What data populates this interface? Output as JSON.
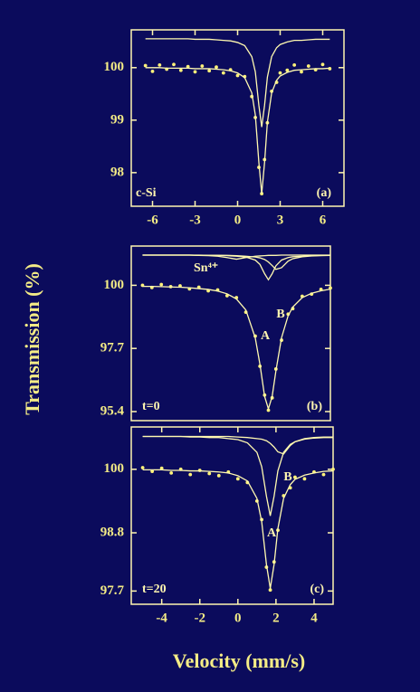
{
  "xlabel": "Velocity (mm/s)",
  "ylabel": "Transmission (%)",
  "chart_data": [
    {
      "type": "line",
      "annotations": [
        "c-Si",
        "(a)"
      ],
      "x": [
        -6.5,
        -6,
        -5.5,
        -5,
        -4.5,
        -4,
        -3.5,
        -3,
        -2.5,
        -2,
        -1.5,
        -1,
        -0.5,
        0,
        0.5,
        1,
        1.25,
        1.5,
        1.7,
        1.9,
        2.1,
        2.4,
        2.75,
        3,
        3.5,
        4,
        4.5,
        5,
        5.5,
        6,
        6.5
      ],
      "xlim": [
        -7.5,
        7.5
      ],
      "xticks": [
        -6,
        -3,
        0,
        3,
        6
      ],
      "ylim": [
        97.36,
        100.72
      ],
      "yticks": [
        100,
        99,
        98
      ],
      "series": [
        {
          "mode": "markers",
          "color": "#fff27a",
          "values": [
            100.04,
            99.93,
            100.05,
            99.97,
            100.06,
            99.95,
            100.02,
            99.92,
            100.03,
            99.94,
            100.01,
            99.9,
            99.96,
            99.85,
            99.83,
            99.45,
            99.05,
            98.1,
            97.6,
            98.25,
            98.95,
            99.55,
            99.72,
            99.9,
            99.95,
            100.05,
            99.92,
            100.03,
            99.96,
            100.06,
            99.98
          ]
        },
        {
          "mode": "line",
          "color": "#fff9b0",
          "values": [
            100.0,
            100.0,
            100.0,
            99.99,
            99.99,
            99.99,
            99.99,
            99.98,
            99.98,
            99.98,
            99.97,
            99.96,
            99.94,
            99.9,
            99.81,
            99.52,
            99.1,
            98.19,
            97.6,
            98.19,
            98.96,
            99.52,
            99.76,
            99.84,
            99.91,
            99.95,
            99.96,
            99.97,
            99.98,
            99.98,
            99.99
          ]
        },
        {
          "mode": "line",
          "color": "#fff9b0",
          "values": [
            100.55,
            100.55,
            100.55,
            100.55,
            100.55,
            100.55,
            100.55,
            100.54,
            100.54,
            100.54,
            100.53,
            100.52,
            100.51,
            100.48,
            100.42,
            100.21,
            99.92,
            99.28,
            98.87,
            99.28,
            99.82,
            100.21,
            100.38,
            100.44,
            100.49,
            100.52,
            100.52,
            100.53,
            100.54,
            100.54,
            100.54
          ]
        }
      ]
    },
    {
      "type": "line",
      "annotations": [
        "Sn⁴⁺",
        "B",
        "A",
        "t=0",
        "(b)"
      ],
      "x": [
        -5,
        -4.5,
        -4,
        -3.5,
        -3,
        -2.5,
        -2,
        -1.5,
        -1,
        -0.5,
        0,
        0.5,
        1,
        1.25,
        1.5,
        1.7,
        1.9,
        2.1,
        2.4,
        2.75,
        3,
        3.5,
        4,
        4.5,
        5
      ],
      "xlim": [
        -5.6,
        5.0
      ],
      "ylim": [
        95.07,
        101.43
      ],
      "yticks": [
        100,
        97.7,
        95.4
      ],
      "series": [
        {
          "mode": "markers",
          "color": "#fff27a",
          "values": [
            100.0,
            99.92,
            100.03,
            99.95,
            99.98,
            99.87,
            99.93,
            99.8,
            99.83,
            99.62,
            99.55,
            99.02,
            98.15,
            97.05,
            96.0,
            95.45,
            95.9,
            96.95,
            98.0,
            98.95,
            99.15,
            99.6,
            99.68,
            99.85,
            99.9
          ]
        },
        {
          "mode": "line",
          "color": "#fff9b0",
          "values": [
            99.96,
            99.96,
            99.95,
            99.94,
            99.93,
            99.91,
            99.88,
            99.85,
            99.79,
            99.69,
            99.5,
            99.1,
            98.09,
            97.12,
            95.95,
            95.5,
            95.95,
            96.88,
            98.09,
            98.89,
            99.21,
            99.55,
            99.71,
            99.8,
            99.86
          ]
        },
        {
          "mode": "line",
          "color": "#fff9b0",
          "values": [
            101.1,
            101.1,
            101.1,
            101.1,
            101.1,
            101.1,
            101.09,
            101.09,
            101.09,
            101.08,
            101.06,
            101.03,
            100.92,
            100.76,
            100.42,
            100.2,
            100.42,
            100.71,
            100.92,
            101.01,
            101.04,
            101.06,
            101.08,
            101.09,
            101.09
          ]
        },
        {
          "mode": "line",
          "color": "#fff9b0",
          "values": [
            101.1,
            101.1,
            101.1,
            101.1,
            101.1,
            101.1,
            101.1,
            101.09,
            101.09,
            101.09,
            101.08,
            101.06,
            101.03,
            101.0,
            100.94,
            100.85,
            100.72,
            100.58,
            100.64,
            100.88,
            100.97,
            101.04,
            101.07,
            101.08,
            101.09
          ]
        },
        {
          "mode": "line",
          "color": "#fff9b0",
          "values": [
            101.1,
            101.1,
            101.1,
            101.1,
            101.1,
            101.1,
            101.09,
            101.08,
            101.06,
            101.01,
            100.95,
            101.01,
            101.06,
            101.07,
            101.08,
            101.09,
            101.09,
            101.09,
            101.1,
            101.1,
            101.1,
            101.1,
            101.1,
            101.1,
            101.1
          ]
        }
      ]
    },
    {
      "type": "line",
      "annotations": [
        "B",
        "A",
        "t=20",
        "(c)"
      ],
      "x": [
        -5,
        -4.5,
        -4,
        -3.5,
        -3,
        -2.5,
        -2,
        -1.5,
        -1,
        -0.5,
        0,
        0.5,
        1,
        1.25,
        1.5,
        1.7,
        1.9,
        2.1,
        2.4,
        2.75,
        3,
        3.5,
        4,
        4.5,
        5
      ],
      "xlim": [
        -5.6,
        5.0
      ],
      "xticks": [
        -4,
        -2,
        0,
        2,
        4
      ],
      "ylim": [
        97.45,
        100.8
      ],
      "yticks": [
        100,
        98.8,
        97.7
      ],
      "series": [
        {
          "mode": "markers",
          "color": "#fff27a",
          "values": [
            100.03,
            99.96,
            100.02,
            99.93,
            100.0,
            99.9,
            99.98,
            99.92,
            99.88,
            99.95,
            99.82,
            99.75,
            99.4,
            99.05,
            98.15,
            97.72,
            98.25,
            98.85,
            99.5,
            99.65,
            99.85,
            99.82,
            99.95,
            99.9,
            100.0
          ]
        },
        {
          "mode": "line",
          "color": "#fff9b0",
          "values": [
            99.99,
            99.99,
            99.99,
            99.98,
            99.98,
            99.97,
            99.97,
            99.96,
            99.95,
            99.93,
            99.88,
            99.78,
            99.45,
            99.01,
            98.2,
            97.75,
            98.2,
            98.88,
            99.45,
            99.71,
            99.81,
            99.89,
            99.93,
            99.96,
            99.97
          ]
        },
        {
          "mode": "line",
          "color": "#fff9b0",
          "values": [
            100.62,
            100.62,
            100.62,
            100.62,
            100.62,
            100.61,
            100.61,
            100.6,
            100.6,
            100.58,
            100.56,
            100.5,
            100.32,
            100.05,
            99.49,
            99.12,
            99.49,
            99.97,
            100.32,
            100.47,
            100.52,
            100.57,
            100.59,
            100.6,
            100.6
          ]
        },
        {
          "mode": "line",
          "color": "#fff9b0",
          "values": [
            100.62,
            100.62,
            100.62,
            100.62,
            100.62,
            100.62,
            100.62,
            100.62,
            100.62,
            100.62,
            100.61,
            100.6,
            100.58,
            100.57,
            100.54,
            100.49,
            100.42,
            100.33,
            100.29,
            100.45,
            100.52,
            100.58,
            100.6,
            100.61,
            100.61
          ]
        }
      ]
    }
  ]
}
